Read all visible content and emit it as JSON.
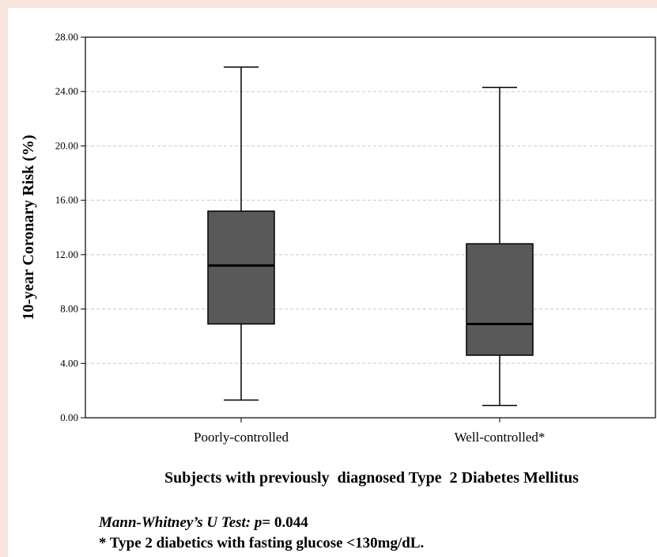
{
  "chart_data": {
    "type": "box",
    "ylabel": "10-year Coronary  Risk (%)",
    "xlabel": "Subjects with previously  diagnosed Type  2 Diabetes Mellitus",
    "ylim": [
      0,
      28
    ],
    "yticks": [
      "0.00",
      "4.00",
      "8.00",
      "12.00",
      "16.00",
      "20.00",
      "24.00",
      "28.00"
    ],
    "ytick_values": [
      0,
      4,
      8,
      12,
      16,
      20,
      24,
      28
    ],
    "grid": "horizontal dashed",
    "box_color": "#595959",
    "categories": [
      "Poorly-controlled",
      "Well-controlled*"
    ],
    "boxes": [
      {
        "name": "Poorly-controlled",
        "min": 1.3,
        "q1": 6.9,
        "median": 11.2,
        "q3": 15.2,
        "max": 25.8
      },
      {
        "name": "Well-controlled*",
        "min": 0.9,
        "q1": 4.6,
        "median": 6.9,
        "q3": 12.8,
        "max": 24.3
      }
    ]
  },
  "footnotes": {
    "test_label": "Mann-Whitney’s U Test: p",
    "test_value": "= 0.044",
    "note": "* Type 2 diabetics with fasting glucose <130mg/dL."
  }
}
